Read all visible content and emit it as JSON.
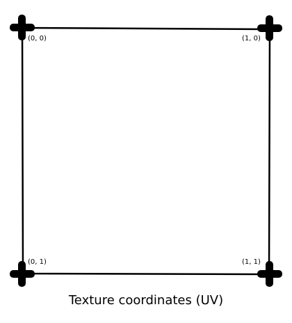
{
  "corners": {
    "top_left": "(0, 0)",
    "top_right": "(1, 0)",
    "bottom_left": "(0, 1)",
    "bottom_right": "(1, 1)"
  },
  "caption": "Texture coordinates (UV)",
  "colors": {
    "stroke": "#000000",
    "background": "#ffffff"
  }
}
